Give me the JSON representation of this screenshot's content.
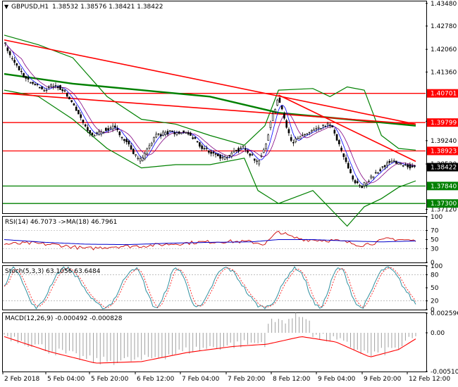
{
  "header": {
    "symbol": "GBPUSD,H1",
    "ohlc": "1.38532 1.38576 1.38421 1.38422"
  },
  "price_axis": {
    "ticks": [
      "1.43480",
      "1.42780",
      "1.42060",
      "1.41360",
      "1.39840",
      "1.39240",
      "1.38520",
      "1.37120"
    ],
    "min": 1.37,
    "max": 1.4354
  },
  "price_labels": [
    {
      "text": "1.40701",
      "value": 1.40701,
      "color": "#ff0000"
    },
    {
      "text": "1.39799",
      "value": 1.39799,
      "color": "#ff0000"
    },
    {
      "text": "1.38923",
      "value": 1.38923,
      "color": "#ff0000"
    },
    {
      "text": "1.38422",
      "value": 1.38422,
      "color": "#000000"
    },
    {
      "text": "1.37840",
      "value": 1.3784,
      "color": "#008000"
    },
    {
      "text": "1.37300",
      "value": 1.373,
      "color": "#008000"
    }
  ],
  "rsi": {
    "header": "RSI(14) 46.7073  ->MA(18) 46.7961",
    "ticks": [
      "100",
      "70",
      "50",
      "30",
      "0"
    ]
  },
  "stoch": {
    "header": "Stoch(5,3,3) 63.1056 63.6484",
    "ticks": [
      "100",
      "80",
      "50",
      "20",
      "0"
    ]
  },
  "macd": {
    "header": "MACD(12,26,9) -0.000492 -0.000828",
    "ticks": [
      "0.002596",
      "0.00",
      "-0.005104"
    ]
  },
  "time_axis": {
    "labels": [
      "2 Feb 2018",
      "5 Feb 04:00",
      "5 Feb 20:00",
      "6 Feb 12:00",
      "7 Feb 04:00",
      "7 Feb 20:00",
      "8 Feb 12:00",
      "9 Feb 04:00",
      "9 Feb 20:00",
      "12 Feb 12:00"
    ]
  },
  "colors": {
    "up": "#000000",
    "down": "#000000",
    "red_line": "#ff0000",
    "green_line": "#008000",
    "ma_fast": "#0000ff",
    "ma_slow": "#800080"
  },
  "chart_data": {
    "type": "candlestick",
    "title": "GBPUSD,H1",
    "ylim": [
      1.37,
      1.4354
    ],
    "horizontal_levels": [
      1.40701,
      1.39799,
      1.38923,
      1.3784,
      1.373
    ],
    "close_path": [
      [
        0,
        1.423
      ],
      [
        6,
        1.418
      ],
      [
        12,
        1.415
      ],
      [
        18,
        1.412
      ],
      [
        24,
        1.41
      ],
      [
        30,
        1.409
      ],
      [
        36,
        1.408
      ],
      [
        42,
        1.4095
      ],
      [
        48,
        1.409
      ],
      [
        54,
        1.407
      ],
      [
        60,
        1.404
      ],
      [
        66,
        1.4
      ],
      [
        72,
        1.396
      ],
      [
        78,
        1.394
      ],
      [
        84,
        1.395
      ],
      [
        90,
        1.396
      ],
      [
        96,
        1.3965
      ],
      [
        102,
        1.394
      ],
      [
        108,
        1.392
      ],
      [
        114,
        1.388
      ],
      [
        120,
        1.386
      ],
      [
        126,
        1.39
      ],
      [
        132,
        1.394
      ],
      [
        138,
        1.3945
      ],
      [
        144,
        1.395
      ],
      [
        150,
        1.3945
      ],
      [
        156,
        1.395
      ],
      [
        162,
        1.3945
      ],
      [
        168,
        1.392
      ],
      [
        174,
        1.39
      ],
      [
        180,
        1.389
      ],
      [
        186,
        1.388
      ],
      [
        192,
        1.387
      ],
      [
        198,
        1.388
      ],
      [
        204,
        1.3895
      ],
      [
        210,
        1.3905
      ],
      [
        216,
        1.388
      ],
      [
        222,
        1.3855
      ],
      [
        228,
        1.39
      ],
      [
        234,
        1.399
      ],
      [
        240,
        1.406
      ],
      [
        246,
        1.398
      ],
      [
        252,
        1.392
      ],
      [
        258,
        1.393
      ],
      [
        264,
        1.3945
      ],
      [
        270,
        1.3955
      ],
      [
        276,
        1.396
      ],
      [
        282,
        1.3975
      ],
      [
        288,
        1.396
      ],
      [
        294,
        1.39
      ],
      [
        300,
        1.385
      ],
      [
        306,
        1.38
      ],
      [
        312,
        1.378
      ],
      [
        318,
        1.38
      ],
      [
        324,
        1.382
      ],
      [
        330,
        1.384
      ],
      [
        336,
        1.3855
      ],
      [
        342,
        1.386
      ],
      [
        348,
        1.385
      ],
      [
        354,
        1.3845
      ],
      [
        360,
        1.3842
      ]
    ],
    "bollinger": {
      "upper": [
        [
          0,
          1.425
        ],
        [
          30,
          1.422
        ],
        [
          60,
          1.418
        ],
        [
          90,
          1.406
        ],
        [
          120,
          1.399
        ],
        [
          150,
          1.3975
        ],
        [
          180,
          1.394
        ],
        [
          210,
          1.391
        ],
        [
          228,
          1.397
        ],
        [
          240,
          1.408
        ],
        [
          270,
          1.4085
        ],
        [
          285,
          1.406
        ],
        [
          300,
          1.409
        ],
        [
          315,
          1.408
        ],
        [
          330,
          1.394
        ],
        [
          345,
          1.39
        ],
        [
          360,
          1.3895
        ]
      ],
      "lower": [
        [
          0,
          1.408
        ],
        [
          30,
          1.406
        ],
        [
          60,
          1.399
        ],
        [
          90,
          1.39
        ],
        [
          120,
          1.384
        ],
        [
          150,
          1.385
        ],
        [
          180,
          1.385
        ],
        [
          210,
          1.387
        ],
        [
          222,
          1.377
        ],
        [
          240,
          1.373
        ],
        [
          270,
          1.377
        ],
        [
          300,
          1.366
        ],
        [
          315,
          1.372
        ],
        [
          330,
          1.3745
        ],
        [
          345,
          1.378
        ],
        [
          360,
          1.38
        ]
      ]
    },
    "green_ma": [
      [
        0,
        1.413
      ],
      [
        60,
        1.41
      ],
      [
        120,
        1.408
      ],
      [
        180,
        1.406
      ],
      [
        240,
        1.401
      ],
      [
        300,
        1.399
      ],
      [
        330,
        1.398
      ],
      [
        360,
        1.397
      ]
    ],
    "trendlines": [
      {
        "from": [
          0,
          1.4235
        ],
        "to": [
          360,
          1.3975
        ]
      },
      {
        "from": [
          0,
          1.407
        ],
        "to": [
          360,
          1.3975
        ]
      },
      {
        "from": [
          240,
          1.4065
        ],
        "to": [
          360,
          1.386
        ]
      }
    ],
    "rsi14": [
      [
        0,
        40
      ],
      [
        24,
        42
      ],
      [
        48,
        38
      ],
      [
        72,
        30
      ],
      [
        96,
        35
      ],
      [
        120,
        36
      ],
      [
        144,
        40
      ],
      [
        168,
        44
      ],
      [
        192,
        46
      ],
      [
        216,
        45
      ],
      [
        228,
        40
      ],
      [
        240,
        68
      ],
      [
        252,
        55
      ],
      [
        264,
        50
      ],
      [
        288,
        48
      ],
      [
        300,
        44
      ],
      [
        312,
        38
      ],
      [
        324,
        43
      ],
      [
        336,
        52
      ],
      [
        348,
        50
      ],
      [
        360,
        47
      ]
    ],
    "rsi_ma18": [
      [
        0,
        50
      ],
      [
        36,
        44
      ],
      [
        72,
        40
      ],
      [
        108,
        39
      ],
      [
        144,
        42
      ],
      [
        180,
        44
      ],
      [
        216,
        45
      ],
      [
        240,
        50
      ],
      [
        270,
        50
      ],
      [
        300,
        47
      ],
      [
        330,
        45
      ],
      [
        360,
        47
      ]
    ],
    "stoch_k_last": 63.1056,
    "stoch_d_last": 63.6484,
    "macd_main_last": -0.000492,
    "macd_signal_last": -0.000828
  }
}
